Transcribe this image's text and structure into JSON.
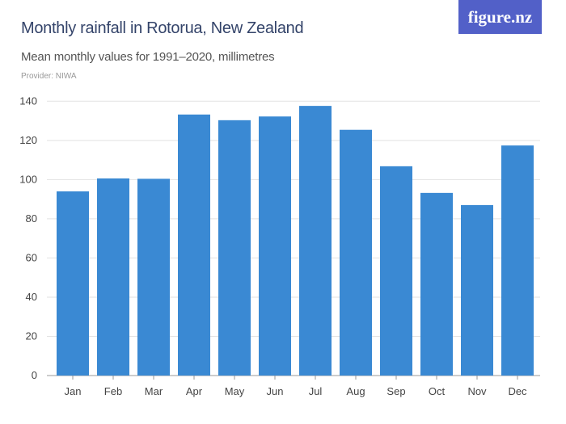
{
  "header": {
    "title": "Monthly rainfall in Rotorua, New Zealand",
    "subtitle": "Mean monthly values for 1991–2020, millimetres",
    "provider": "Provider: NIWA",
    "logo": "figure.nz"
  },
  "chart_data": {
    "type": "bar",
    "title": "Monthly rainfall in Rotorua, New Zealand",
    "subtitle": "Mean monthly values for 1991–2020, millimetres",
    "categories": [
      "Jan",
      "Feb",
      "Mar",
      "Apr",
      "May",
      "Jun",
      "Jul",
      "Aug",
      "Sep",
      "Oct",
      "Nov",
      "Dec"
    ],
    "values": [
      94.0,
      100.6,
      100.4,
      133.2,
      130.3,
      132.2,
      137.6,
      125.4,
      106.8,
      93.2,
      87.0,
      117.4
    ],
    "ylim": [
      0,
      140
    ],
    "yticks": [
      0,
      20,
      40,
      60,
      80,
      100,
      120,
      140
    ],
    "grid": true,
    "colors": {
      "bar": "#3a89d3",
      "grid": "#e2e2e2"
    }
  }
}
